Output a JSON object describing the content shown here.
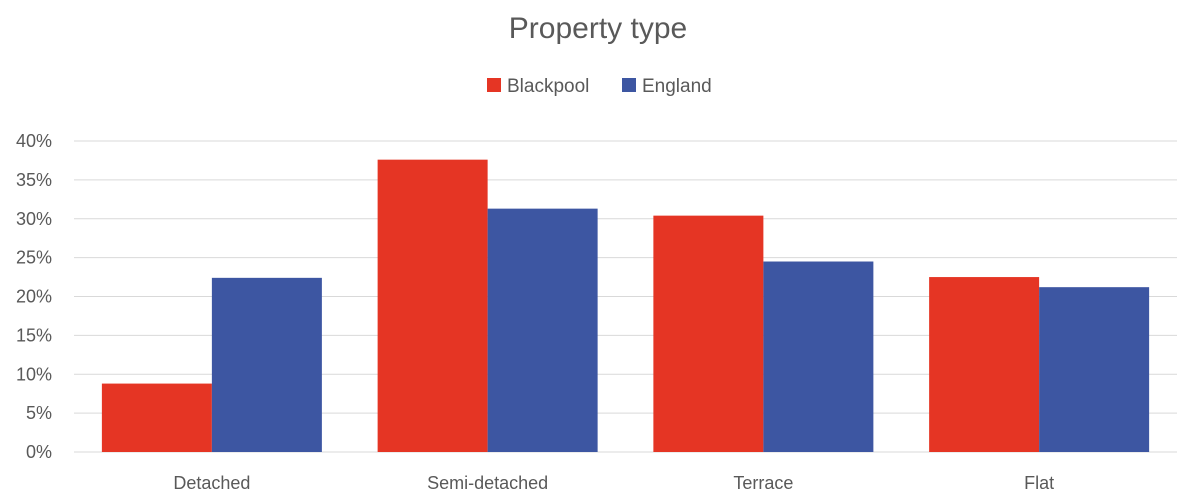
{
  "chart_data": {
    "type": "bar",
    "title": "Property type",
    "categories": [
      "Detached",
      "Semi-detached",
      "Terrace",
      "Flat"
    ],
    "series": [
      {
        "name": "Blackpool",
        "color": "#e53524",
        "values": [
          8.8,
          37.6,
          30.4,
          22.5
        ]
      },
      {
        "name": "England",
        "color": "#3d56a2",
        "values": [
          22.4,
          31.3,
          24.5,
          21.2
        ]
      }
    ],
    "ylim": [
      0,
      40
    ],
    "y_ticks": [
      "0%",
      "5%",
      "10%",
      "15%",
      "20%",
      "25%",
      "30%",
      "35%",
      "40%"
    ],
    "y_tick_values": [
      0,
      5,
      10,
      15,
      20,
      25,
      30,
      35,
      40
    ],
    "value_unit": "percent",
    "xlabel": "",
    "ylabel": "",
    "legend_position": "top-center",
    "grid": true
  }
}
